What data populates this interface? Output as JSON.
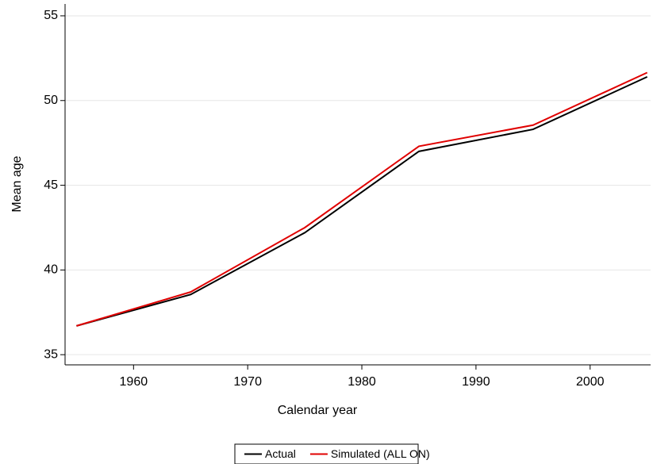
{
  "chart_data": {
    "type": "line",
    "x_label": "Calendar year",
    "y_label": "Mean age",
    "x": [
      1955,
      1965,
      1975,
      1985,
      1995,
      2005
    ],
    "series": [
      {
        "name": "Actual",
        "color": "#000000",
        "values": [
          36.7,
          38.55,
          42.2,
          47.0,
          48.3,
          51.4
        ]
      },
      {
        "name": "Simulated (ALL ON)",
        "color": "#e00000",
        "values": [
          36.7,
          38.7,
          42.5,
          47.3,
          48.55,
          51.65
        ]
      }
    ],
    "xlim": [
      1954,
      2005.3
    ],
    "xticks": [
      1960,
      1970,
      1980,
      1990,
      2000
    ],
    "ylim": [
      34.4,
      55.7
    ],
    "yticks": [
      35,
      40,
      45,
      50,
      55
    ],
    "grid": true,
    "legend_position": "bottom"
  }
}
